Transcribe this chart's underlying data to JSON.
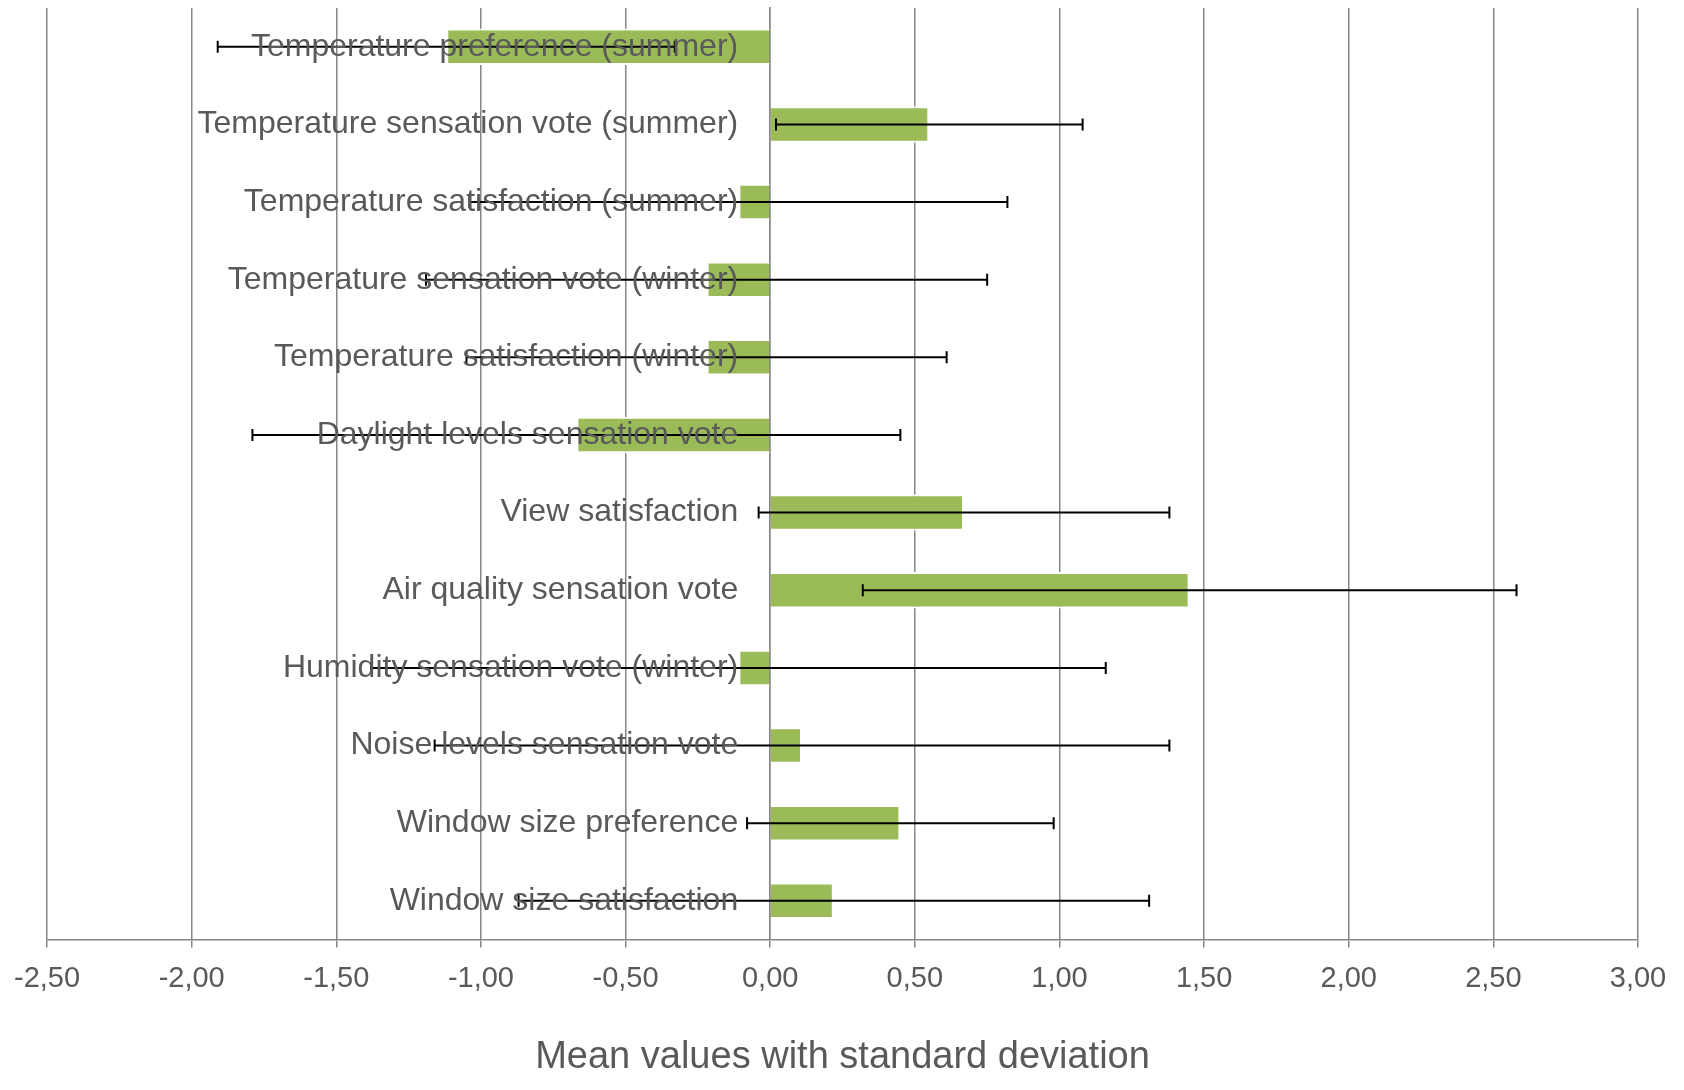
{
  "chart_data": {
    "type": "bar",
    "orientation": "horizontal",
    "xlabel": "Mean values with standard deviation",
    "categories": [
      "Temperature preference (summer)",
      "Temperature sensation vote (summer)",
      "Temperature satisfaction (summer)",
      "Temperature sensation vote (winter)",
      "Temperature satisfaction (winter)",
      "Daylight levels sensation vote",
      "View satisfaction",
      "Air quality sensation vote",
      "Humidity sensation vote (winter)",
      "Noise levels sensation vote",
      "Window size preference",
      "Window size satisfaction"
    ],
    "series": [
      {
        "color": "#9bbb59",
        "values": [
          -1.12,
          0.55,
          -0.11,
          -0.22,
          -0.22,
          -0.67,
          0.67,
          1.45,
          -0.11,
          0.11,
          0.45,
          0.22
        ],
        "errors": [
          0.79,
          0.53,
          0.93,
          0.97,
          0.83,
          1.12,
          0.71,
          1.13,
          1.27,
          1.27,
          0.53,
          1.09
        ]
      }
    ],
    "xlim": [
      -2.5,
      3
    ],
    "xticks": [
      {
        "value": -2.5,
        "label": "-2,50"
      },
      {
        "value": -2,
        "label": "-2,00"
      },
      {
        "value": -1.5,
        "label": "-1,50"
      },
      {
        "value": -1,
        "label": "-1,00"
      },
      {
        "value": -0.5,
        "label": "-0,50"
      },
      {
        "value": 0,
        "label": "0,00"
      },
      {
        "value": 0.5,
        "label": "0,50"
      },
      {
        "value": 1,
        "label": "1,00"
      },
      {
        "value": 1.5,
        "label": "1,50"
      },
      {
        "value": 2,
        "label": "2,00"
      },
      {
        "value": 2.5,
        "label": "2,50"
      },
      {
        "value": 3,
        "label": "3,00"
      }
    ],
    "grid": "x",
    "legend": false
  }
}
